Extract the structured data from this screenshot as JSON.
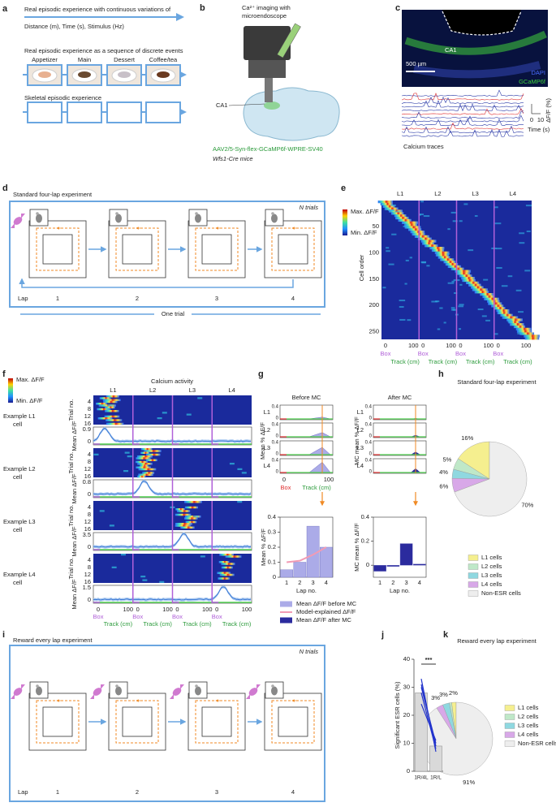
{
  "a": {
    "letter": "a",
    "continuous": "Real episodic experience with continuous variations of",
    "dimensions": "Distance (m), Time (s), Stimulus (Hz)",
    "discrete": "Real episodic experience as a sequence of discrete events",
    "events": [
      "Appetizer",
      "Main",
      "Dessert",
      "Coffee/tea"
    ],
    "skeletal": "Skeletal episodic experience"
  },
  "b": {
    "letter": "b",
    "title": [
      "Ca²⁺ imaging with",
      "microendoscope"
    ],
    "region": "CA1",
    "virus": "AAV2/5-Syn-flex-GCaMP6f-WPRE-SV40",
    "mice": "Wfs1-Cre mice"
  },
  "c": {
    "letter": "c",
    "region": "CA1",
    "scale_bar": "500 µm",
    "stains": [
      "DAPI",
      "GCaMP6f"
    ],
    "y_label": "ΔF/F (%)",
    "x_ticks": [
      "0",
      "10"
    ],
    "x_label": "Time (s)",
    "traces": "Calcium traces"
  },
  "d": {
    "letter": "d",
    "title": "Standard four-lap experiment",
    "trials": "N trials",
    "lap_label": "Lap",
    "laps": [
      "1",
      "2",
      "3",
      "4"
    ],
    "trial": "One trial"
  },
  "e": {
    "letter": "e",
    "laps": [
      "L1",
      "L2",
      "L3",
      "L4"
    ],
    "colorbar": [
      "Max. ΔF/F",
      "Min. ΔF/F"
    ],
    "y_label": "Cell order",
    "y_ticks": [
      "50",
      "100",
      "150",
      "200",
      "250"
    ],
    "x_ticks": [
      "0",
      "100"
    ],
    "box": "Box",
    "track": "Track (cm)"
  },
  "f": {
    "letter": "f",
    "colorbar": [
      "Max. ΔF/F",
      "Min. ΔF/F"
    ],
    "title": "Calcium activity",
    "laps": [
      "L1",
      "L2",
      "L3",
      "L4"
    ],
    "examples": [
      [
        "Example L1",
        "cell"
      ],
      [
        "Example L2",
        "cell"
      ],
      [
        "Example L3",
        "cell"
      ],
      [
        "Example L4",
        "cell"
      ]
    ],
    "trial_label": "Trial no.",
    "trial_ticks": [
      "4",
      "8",
      "12",
      "16"
    ],
    "mean_label": "Mean ΔF/F",
    "mean_ticks": [
      [
        "0.9",
        "0"
      ],
      [
        "0.8",
        "0"
      ],
      [
        "3.5",
        "0"
      ],
      [
        "1.5",
        "0"
      ]
    ],
    "x_ticks": [
      "0",
      "100"
    ],
    "box": "Box",
    "track": "Track (cm)"
  },
  "g": {
    "letter": "g",
    "before": "Before MC",
    "after": "After MC",
    "laps": [
      "L1",
      "L2",
      "L3",
      "L4"
    ],
    "mean_label": "Mean % ΔF/F",
    "mc_label": "MC mean % ΔF/F",
    "small_ticks": [
      "0.4",
      "0"
    ],
    "box": "Box",
    "track": "Track (cm)",
    "x_ticks": [
      "0",
      "100"
    ],
    "before_chart": {
      "type": "bar",
      "categories": [
        "1",
        "2",
        "3",
        "4"
      ],
      "ylim": [
        0,
        0.4
      ],
      "yticks": [
        0,
        0.1,
        0.2,
        0.3,
        0.4
      ],
      "y_label": "Mean % ΔF/F",
      "x_label": "Lap no.",
      "series": [
        {
          "name": "Mean ΔF/F before MC",
          "color": "#ababe8",
          "values": [
            0.05,
            0.1,
            0.34,
            0.2
          ]
        },
        {
          "name": "Model-explained ΔF/F",
          "color": "#f29bb4",
          "values": [
            0.1,
            0.11,
            0.15,
            0.2
          ]
        }
      ]
    },
    "after_chart": {
      "type": "bar",
      "categories": [
        "1",
        "2",
        "3",
        "4"
      ],
      "ylim": [
        -0.1,
        0.4
      ],
      "yticks": [
        0,
        0.2,
        0.4
      ],
      "y_label": "MC mean % ΔF/F",
      "x_label": "Lap no.",
      "series": [
        {
          "name": "Mean ΔF/F after MC",
          "color": "#2b2b9e",
          "values": [
            -0.05,
            -0.01,
            0.18,
            0.01
          ]
        }
      ]
    }
  },
  "h": {
    "letter": "h",
    "chart": {
      "type": "pie",
      "title": "Standard four-lap experiment",
      "categories": [
        "L1 cells",
        "L2 cells",
        "L3 cells",
        "L4 cells",
        "Non-ESR cells"
      ],
      "values": [
        16,
        5,
        4,
        6,
        70
      ],
      "value_labels": [
        "16%",
        "5%",
        "4%",
        "6%",
        "70%"
      ],
      "colors": [
        "#f5ef8f",
        "#bfe8c8",
        "#8fd8e0",
        "#d8a8e8",
        "#eeeeee"
      ]
    }
  },
  "i": {
    "letter": "i",
    "title": "Reward every lap experiment",
    "trials": "N trials",
    "lap_label": "Lap",
    "laps": [
      "1",
      "2",
      "3",
      "4"
    ]
  },
  "j": {
    "letter": "j",
    "chart": {
      "type": "bar",
      "categories": [
        "1R/4L",
        "1R/L"
      ],
      "values": [
        28,
        9
      ],
      "ylim": [
        0,
        40
      ],
      "yticks": [
        0,
        10,
        20,
        30,
        40
      ],
      "y_label": "Significant ESR cells (%)",
      "annotation": "***",
      "color": "#d9d9d9",
      "pairs": [
        [
          33,
          7
        ],
        [
          31,
          9
        ],
        [
          30,
          10
        ],
        [
          28,
          8
        ],
        [
          24,
          11
        ]
      ]
    }
  },
  "k": {
    "letter": "k",
    "chart": {
      "type": "pie",
      "title": "Reward every lap experiment",
      "categories": [
        "L1 cells",
        "L2 cells",
        "L3 cells",
        "L4 cells",
        "Non-ESR cells"
      ],
      "values": [
        2,
        1,
        3,
        3,
        91
      ],
      "value_labels": [
        "2%",
        null,
        "3%",
        "3%",
        "91%"
      ],
      "colors": [
        "#f5ef8f",
        "#bfe8c8",
        "#8fd8e0",
        "#d8a8e8",
        "#eeeeee"
      ]
    }
  }
}
